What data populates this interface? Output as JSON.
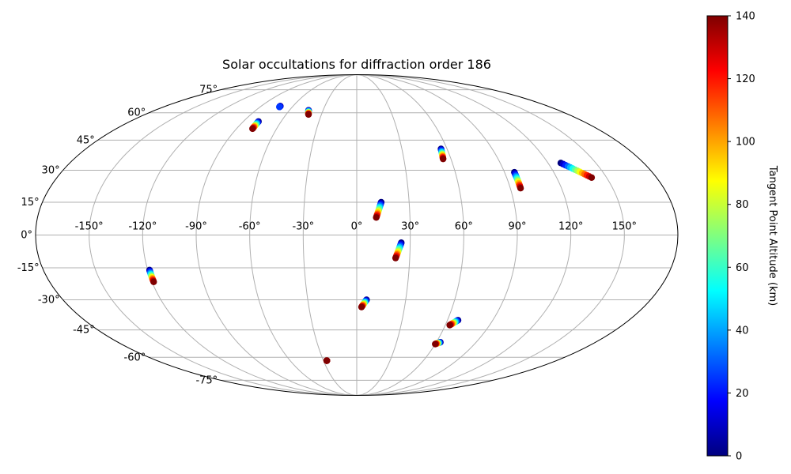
{
  "chart_data": {
    "type": "scatter",
    "projection": "mollweide",
    "title": "Solar occultations for diffraction order 186",
    "lon_ticks": [
      -150,
      -120,
      -90,
      -60,
      -30,
      0,
      30,
      60,
      90,
      120,
      150
    ],
    "lon_tick_labels": [
      "-150°",
      "-120°",
      "-90°",
      "-60°",
      "-30°",
      "0°",
      "30°",
      "60°",
      "90°",
      "120°",
      "150°"
    ],
    "lat_ticks": [
      -75,
      -60,
      -45,
      -30,
      -15,
      0,
      15,
      30,
      45,
      60,
      75
    ],
    "lat_tick_labels": [
      "-75°",
      "-60°",
      "-45°",
      "-30°",
      "-15°",
      "0°",
      "15°",
      "30°",
      "45°",
      "60°",
      "75°"
    ],
    "grid": true,
    "colormap": "jet",
    "colorbar": {
      "label": "Tangent Point Altitude (km)",
      "min": 0,
      "max": 140,
      "ticks": [
        0,
        20,
        40,
        60,
        80,
        100,
        120,
        140
      ],
      "tick_labels": [
        "0",
        "20",
        "40",
        "60",
        "80",
        "100",
        "120",
        "140"
      ]
    },
    "occultations": [
      {
        "start": {
          "lon": -72,
          "lat": 64,
          "alt": 0
        },
        "end": {
          "lon": -72,
          "lat": 63.5,
          "alt": 25
        }
      },
      {
        "start": {
          "lon": -78,
          "lat": 55,
          "alt": 0
        },
        "end": {
          "lon": -78,
          "lat": 51,
          "alt": 140
        }
      },
      {
        "start": {
          "lon": -43,
          "lat": 61.5,
          "alt": 0
        },
        "end": {
          "lon": -41,
          "lat": 59,
          "alt": 140
        }
      },
      {
        "start": {
          "lon": 56,
          "lat": 40.5,
          "alt": 0
        },
        "end": {
          "lon": 55,
          "lat": 35.5,
          "alt": 140
        }
      },
      {
        "start": {
          "lon": 96,
          "lat": 29,
          "alt": 0
        },
        "end": {
          "lon": 96,
          "lat": 21.5,
          "alt": 140
        }
      },
      {
        "start": {
          "lon": 128,
          "lat": 33.5,
          "alt": 0
        },
        "end": {
          "lon": 141,
          "lat": 26.5,
          "alt": 140
        }
      },
      {
        "start": {
          "lon": 14,
          "lat": 15,
          "alt": 0
        },
        "end": {
          "lon": 11,
          "lat": 8,
          "alt": 140
        }
      },
      {
        "start": {
          "lon": 25,
          "lat": -3.5,
          "alt": 0
        },
        "end": {
          "lon": 22,
          "lat": -10.5,
          "alt": 140
        }
      },
      {
        "start": {
          "lon": -119,
          "lat": -16,
          "alt": 0
        },
        "end": {
          "lon": -119,
          "lat": -21.5,
          "alt": 140
        }
      },
      {
        "start": {
          "lon": 6,
          "lat": -30,
          "alt": 0
        },
        "end": {
          "lon": 3,
          "lat": -33.5,
          "alt": 140
        }
      },
      {
        "start": {
          "lon": 67,
          "lat": -40,
          "alt": 0
        },
        "end": {
          "lon": 63,
          "lat": -42.5,
          "alt": 140
        }
      },
      {
        "start": {
          "lon": 63,
          "lat": -51.5,
          "alt": 0
        },
        "end": {
          "lon": 60,
          "lat": -52.5,
          "alt": 140
        }
      },
      {
        "start": {
          "lon": -27,
          "lat": -62,
          "alt": 120
        },
        "end": {
          "lon": -27,
          "lat": -62,
          "alt": 140
        }
      }
    ]
  }
}
